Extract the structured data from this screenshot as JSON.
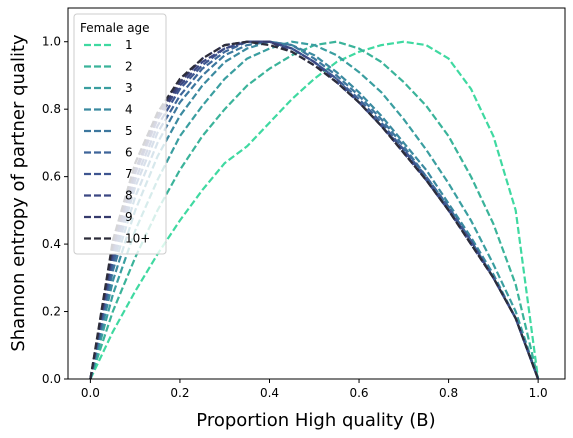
{
  "chart_data": {
    "type": "line",
    "xlabel": "Proportion High quality (B)",
    "ylabel": "Shannon entropy of partner quality",
    "xlim": [
      -0.05,
      1.06
    ],
    "ylim": [
      0.0,
      1.1
    ],
    "xticks": [
      "0.0",
      "0.2",
      "0.4",
      "0.6",
      "0.8",
      "1.0"
    ],
    "yticks": [
      "0.0",
      "0.2",
      "0.4",
      "0.6",
      "0.8",
      "1.0"
    ],
    "grid": false,
    "line_style": "dashed",
    "legend": {
      "title": "Female age",
      "placement": "top-left"
    },
    "x": [
      0.0,
      0.05,
      0.1,
      0.15,
      0.2,
      0.25,
      0.3,
      0.35,
      0.4,
      0.45,
      0.5,
      0.55,
      0.6,
      0.65,
      0.7,
      0.75,
      0.8,
      0.85,
      0.9,
      0.95,
      1.0
    ],
    "series": [
      {
        "name": "1",
        "color": "#3fd9a1",
        "values": [
          0.0,
          0.14,
          0.26,
          0.37,
          0.47,
          0.56,
          0.64,
          0.69,
          0.76,
          0.83,
          0.89,
          0.94,
          0.97,
          0.99,
          1.0,
          0.99,
          0.95,
          0.86,
          0.72,
          0.5,
          0.0
        ]
      },
      {
        "name": "2",
        "color": "#3ab39a",
        "values": [
          0.0,
          0.2,
          0.36,
          0.5,
          0.62,
          0.72,
          0.8,
          0.87,
          0.92,
          0.96,
          0.99,
          1.0,
          0.98,
          0.94,
          0.88,
          0.81,
          0.72,
          0.6,
          0.46,
          0.28,
          0.0
        ]
      },
      {
        "name": "3",
        "color": "#3a9ea0",
        "values": [
          0.0,
          0.25,
          0.44,
          0.59,
          0.72,
          0.81,
          0.89,
          0.95,
          0.98,
          1.0,
          0.99,
          0.96,
          0.91,
          0.85,
          0.77,
          0.68,
          0.58,
          0.47,
          0.34,
          0.2,
          0.0
        ]
      },
      {
        "name": "4",
        "color": "#3b8aa0",
        "values": [
          0.0,
          0.29,
          0.5,
          0.66,
          0.78,
          0.87,
          0.94,
          0.98,
          1.0,
          0.99,
          0.96,
          0.91,
          0.85,
          0.78,
          0.7,
          0.62,
          0.52,
          0.42,
          0.31,
          0.18,
          0.0
        ]
      },
      {
        "name": "5",
        "color": "#3d779e",
        "values": [
          0.0,
          0.32,
          0.54,
          0.7,
          0.82,
          0.9,
          0.96,
          0.99,
          1.0,
          0.99,
          0.95,
          0.9,
          0.84,
          0.77,
          0.69,
          0.6,
          0.51,
          0.41,
          0.3,
          0.18,
          0.0
        ]
      },
      {
        "name": "6",
        "color": "#3e6599",
        "values": [
          0.0,
          0.34,
          0.57,
          0.73,
          0.84,
          0.92,
          0.97,
          1.0,
          1.0,
          0.98,
          0.94,
          0.89,
          0.83,
          0.76,
          0.68,
          0.6,
          0.51,
          0.41,
          0.3,
          0.18,
          0.0
        ]
      },
      {
        "name": "7",
        "color": "#3e5590",
        "values": [
          0.0,
          0.36,
          0.59,
          0.75,
          0.86,
          0.93,
          0.98,
          1.0,
          1.0,
          0.98,
          0.94,
          0.89,
          0.82,
          0.75,
          0.68,
          0.59,
          0.5,
          0.41,
          0.3,
          0.18,
          0.0
        ]
      },
      {
        "name": "8",
        "color": "#3c4883",
        "values": [
          0.0,
          0.38,
          0.61,
          0.77,
          0.87,
          0.94,
          0.98,
          1.0,
          1.0,
          0.98,
          0.94,
          0.88,
          0.82,
          0.75,
          0.67,
          0.59,
          0.5,
          0.4,
          0.3,
          0.18,
          0.0
        ]
      },
      {
        "name": "9",
        "color": "#363b6d",
        "values": [
          0.0,
          0.39,
          0.62,
          0.78,
          0.88,
          0.95,
          0.99,
          1.0,
          1.0,
          0.97,
          0.93,
          0.88,
          0.82,
          0.75,
          0.67,
          0.59,
          0.5,
          0.4,
          0.3,
          0.18,
          0.0
        ]
      },
      {
        "name": "10+",
        "color": "#2d2d3a",
        "values": [
          0.0,
          0.41,
          0.64,
          0.79,
          0.89,
          0.95,
          0.99,
          1.0,
          0.99,
          0.97,
          0.93,
          0.88,
          0.82,
          0.75,
          0.67,
          0.59,
          0.5,
          0.4,
          0.3,
          0.18,
          0.0
        ]
      }
    ]
  }
}
